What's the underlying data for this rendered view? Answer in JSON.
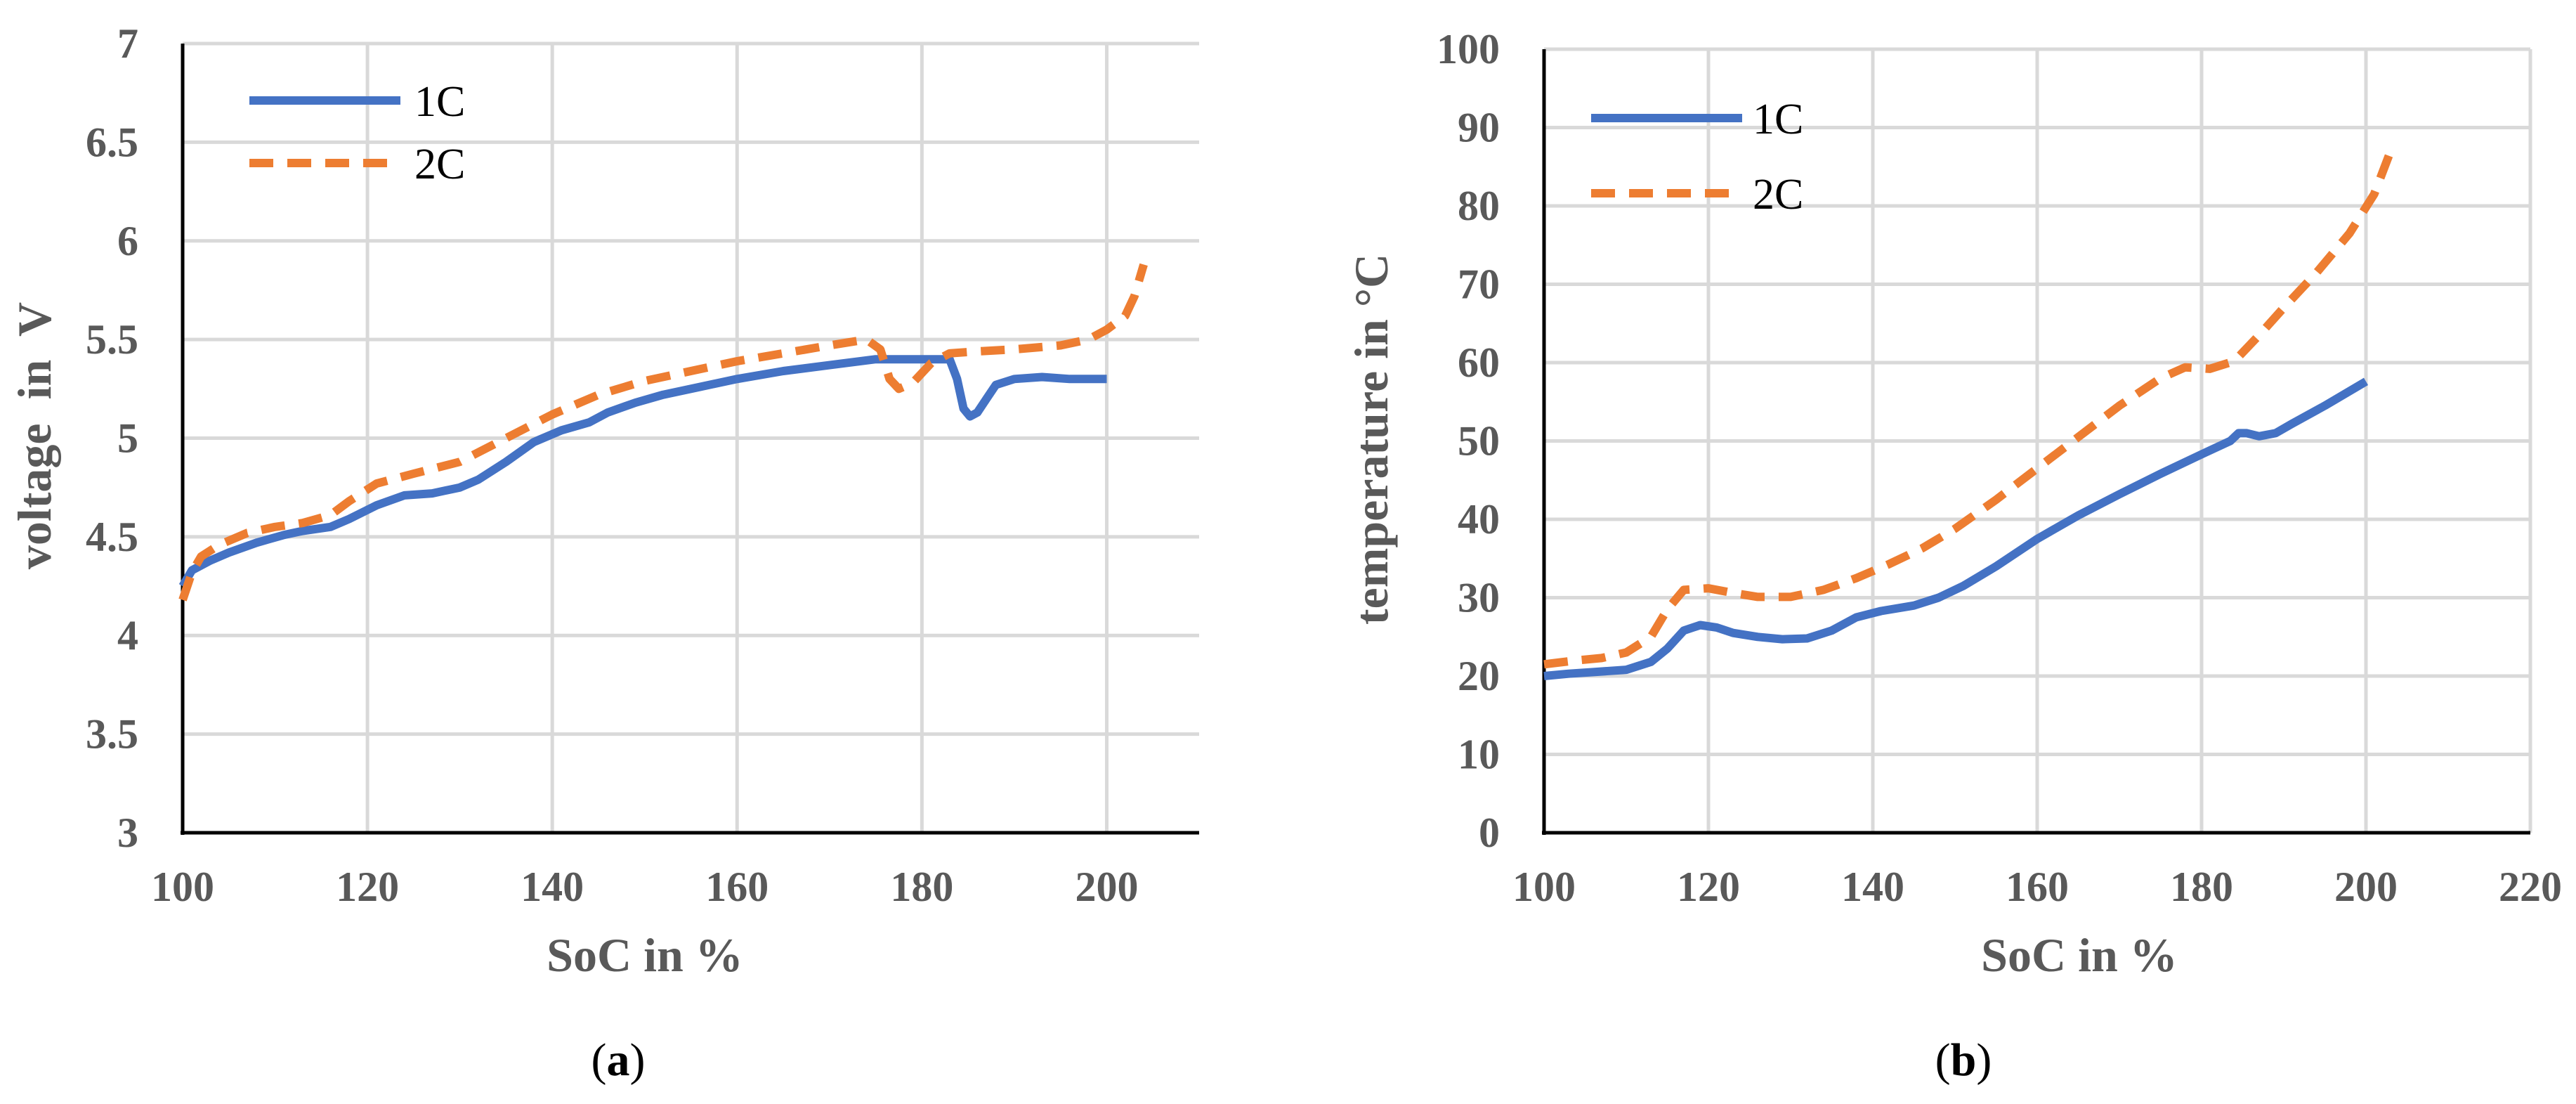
{
  "chart_data": [
    {
      "id": "a",
      "type": "line",
      "caption_letter": "a",
      "xlabel": "SoC in %",
      "ylabel": "voltage  in  V",
      "xlim": [
        100,
        210
      ],
      "ylim": [
        3,
        7
      ],
      "xticks": [
        100,
        120,
        140,
        160,
        180,
        200
      ],
      "yticks": [
        3,
        3.5,
        4,
        4.5,
        5,
        5.5,
        6,
        6.5,
        7
      ],
      "xtick_labels": [
        "100",
        "120",
        "140",
        "160",
        "180",
        "200"
      ],
      "ytick_labels": [
        "3",
        "3.5",
        "4",
        "4.5",
        "5",
        "5.5",
        "6",
        "6.5",
        "7"
      ],
      "grid": true,
      "legend_position": "top-left",
      "series": [
        {
          "name": "1C",
          "color": "#4472c4",
          "style": "solid",
          "x": [
            100,
            101,
            103,
            105,
            108,
            111,
            113,
            116,
            118,
            121,
            124,
            127,
            130,
            132,
            135,
            138,
            141,
            144,
            146,
            149,
            152,
            156,
            160,
            165,
            170,
            175,
            180,
            183,
            183.8,
            184.5,
            185.2,
            186,
            187,
            188,
            190,
            193,
            196,
            200
          ],
          "y": [
            4.25,
            4.33,
            4.38,
            4.42,
            4.47,
            4.51,
            4.53,
            4.55,
            4.59,
            4.66,
            4.71,
            4.72,
            4.75,
            4.79,
            4.88,
            4.98,
            5.04,
            5.08,
            5.13,
            5.18,
            5.22,
            5.26,
            5.3,
            5.34,
            5.37,
            5.4,
            5.4,
            5.4,
            5.3,
            5.15,
            5.11,
            5.13,
            5.2,
            5.27,
            5.3,
            5.31,
            5.3,
            5.3
          ]
        },
        {
          "name": "2C",
          "color": "#ed7d31",
          "style": "dashed",
          "x": [
            100,
            101,
            102,
            104,
            107,
            110,
            113,
            116,
            118,
            121,
            125,
            130,
            135,
            140,
            145,
            150,
            155,
            160,
            165,
            170,
            174,
            175.5,
            176.5,
            177.5,
            179,
            181,
            183,
            186,
            190,
            195,
            198,
            200,
            202,
            203,
            204
          ],
          "y": [
            4.18,
            4.32,
            4.4,
            4.46,
            4.52,
            4.55,
            4.57,
            4.61,
            4.68,
            4.77,
            4.82,
            4.88,
            5.0,
            5.12,
            5.22,
            5.29,
            5.34,
            5.39,
            5.43,
            5.47,
            5.5,
            5.45,
            5.3,
            5.25,
            5.28,
            5.38,
            5.43,
            5.44,
            5.45,
            5.47,
            5.5,
            5.55,
            5.62,
            5.72,
            5.88
          ]
        }
      ]
    },
    {
      "id": "b",
      "type": "line",
      "caption_letter": "b",
      "xlabel": "SoC in %",
      "ylabel": "temperature in °C",
      "xlim": [
        100,
        220
      ],
      "ylim": [
        0,
        100
      ],
      "xticks": [
        100,
        120,
        140,
        160,
        180,
        200,
        220
      ],
      "yticks": [
        0,
        10,
        20,
        30,
        40,
        50,
        60,
        70,
        80,
        90,
        100
      ],
      "xtick_labels": [
        "100",
        "120",
        "140",
        "160",
        "180",
        "200",
        "220"
      ],
      "ytick_labels": [
        "0",
        "10",
        "20",
        "30",
        "40",
        "50",
        "60",
        "70",
        "80",
        "90",
        "100"
      ],
      "grid": true,
      "legend_position": "top-left",
      "series": [
        {
          "name": "1C",
          "color": "#4472c4",
          "style": "solid",
          "x": [
            100,
            103,
            106,
            110,
            113,
            115,
            117,
            119,
            121,
            123,
            126,
            129,
            132,
            135,
            138,
            141,
            145,
            148,
            151,
            155,
            160,
            165,
            170,
            175,
            180,
            183.5,
            184.5,
            185.5,
            187,
            189,
            191,
            195,
            200
          ],
          "y": [
            20,
            20.3,
            20.5,
            20.8,
            21.8,
            23.5,
            25.8,
            26.5,
            26.2,
            25.5,
            25.0,
            24.7,
            24.8,
            25.8,
            27.5,
            28.3,
            29,
            30,
            31.5,
            34,
            37.5,
            40.5,
            43.2,
            45.8,
            48.3,
            50,
            51,
            51,
            50.6,
            51,
            52.2,
            54.5,
            57.6
          ]
        },
        {
          "name": "2C",
          "color": "#ed7d31",
          "style": "dashed",
          "x": [
            100,
            104,
            107,
            110,
            113,
            115,
            117,
            120,
            123,
            126,
            130,
            134,
            138,
            142,
            146,
            150,
            155,
            160,
            165,
            170,
            175,
            178,
            181,
            184,
            187,
            190,
            194,
            198,
            201,
            203
          ],
          "y": [
            21.5,
            22,
            22.3,
            23,
            25,
            28.5,
            31,
            31.2,
            30.6,
            30.1,
            30.1,
            31,
            32.5,
            34.3,
            36.3,
            38.8,
            42.5,
            46.5,
            50.5,
            54.5,
            58,
            59.4,
            59.2,
            60.2,
            63.5,
            67,
            71.5,
            76.5,
            81.5,
            87
          ]
        }
      ]
    }
  ]
}
